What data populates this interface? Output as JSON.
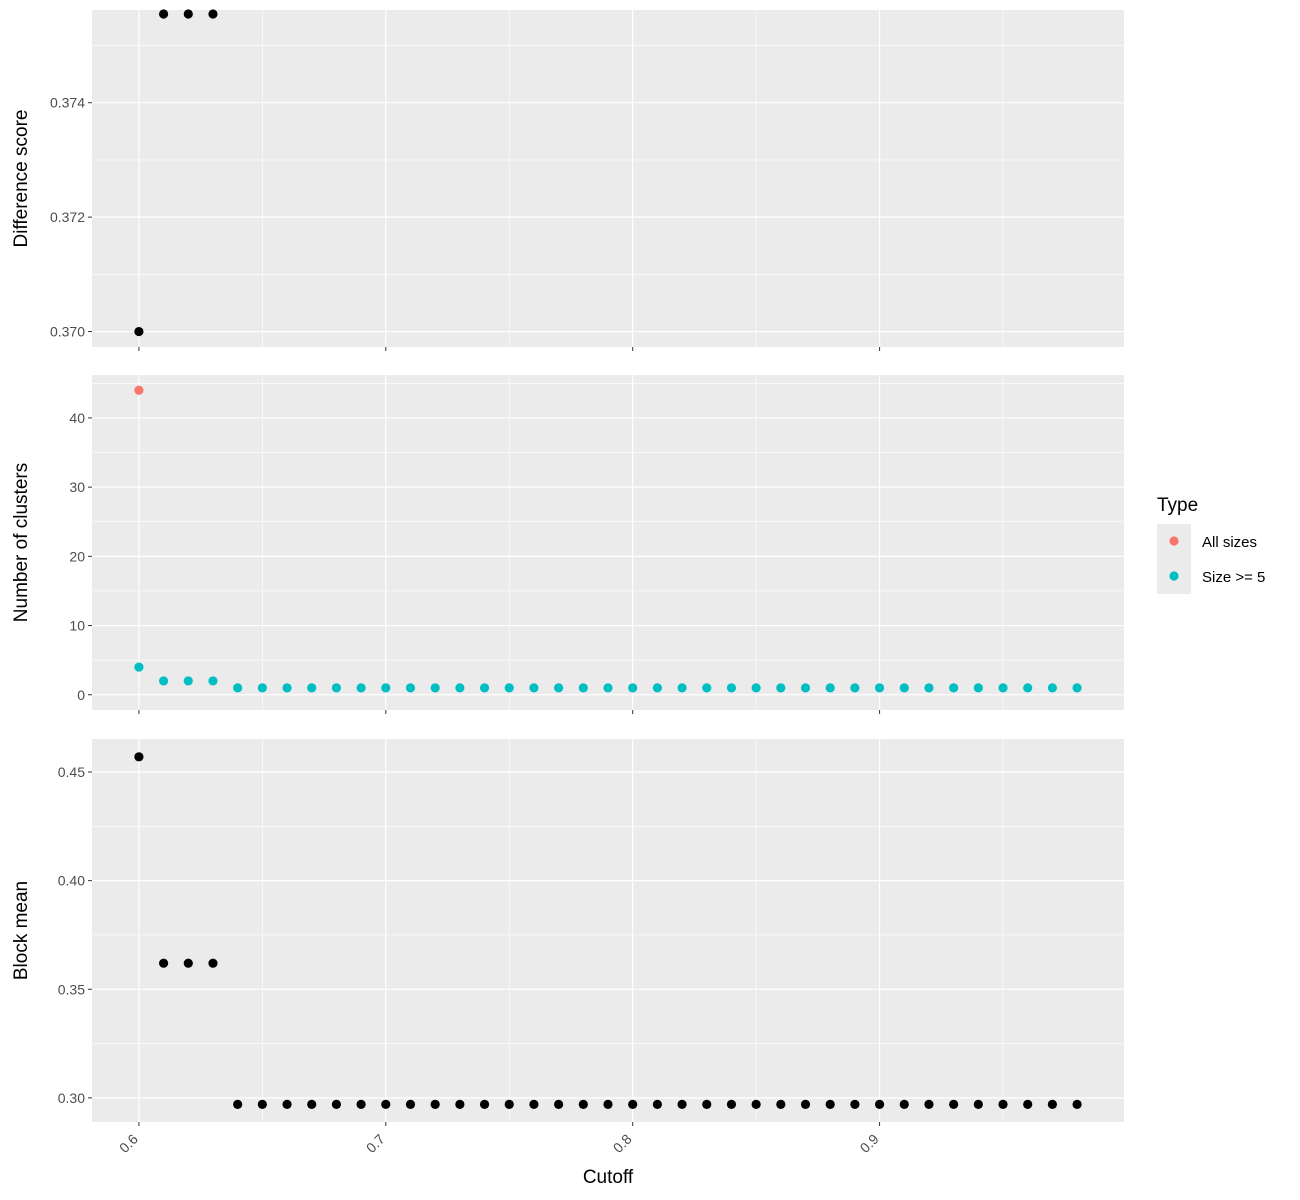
{
  "chart_data": {
    "type": "scatter",
    "xlabel": "Cutoff",
    "x_ticks": [
      0.6,
      0.7,
      0.8,
      0.9
    ],
    "x_tick_labels": [
      "0.6",
      "0.7",
      "0.8",
      "0.9"
    ],
    "xlim": [
      0.581,
      0.999
    ],
    "x": [
      0.6,
      0.61,
      0.62,
      0.63,
      0.64,
      0.65,
      0.66,
      0.67,
      0.68,
      0.69,
      0.7,
      0.71,
      0.72,
      0.73,
      0.74,
      0.75,
      0.76,
      0.77,
      0.78,
      0.79,
      0.8,
      0.81,
      0.82,
      0.83,
      0.84,
      0.85,
      0.86,
      0.87,
      0.88,
      0.89,
      0.9,
      0.91,
      0.92,
      0.93,
      0.94,
      0.95,
      0.96,
      0.97,
      0.98
    ],
    "panels": [
      {
        "ylabel": "Difference score",
        "ylim": [
          0.36973,
          0.37562
        ],
        "y_ticks": [
          0.37,
          0.372,
          0.374
        ],
        "y_tick_labels": [
          "0.370",
          "0.372",
          "0.374"
        ],
        "y_minor": [
          0.371,
          0.373,
          0.375
        ],
        "series": [
          {
            "color": "#000000",
            "x": [
              0.6,
              0.61,
              0.62,
              0.63
            ],
            "values": [
              0.37,
              0.37555,
              0.37555,
              0.37555
            ]
          }
        ]
      },
      {
        "ylabel": "Number of clusters",
        "ylim": [
          -2.2,
          46.2
        ],
        "y_ticks": [
          0,
          10,
          20,
          30,
          40
        ],
        "y_tick_labels": [
          "0",
          "10",
          "20",
          "30",
          "40"
        ],
        "y_minor": [
          5,
          15,
          25,
          35,
          45
        ],
        "series": [
          {
            "name": "All sizes",
            "color": "#F8766D",
            "x": [
              0.6
            ],
            "values": [
              44
            ]
          },
          {
            "name": "Size >= 5",
            "color": "#00BFC4",
            "x": [
              0.6,
              0.61,
              0.62,
              0.63,
              0.64,
              0.65,
              0.66,
              0.67,
              0.68,
              0.69,
              0.7,
              0.71,
              0.72,
              0.73,
              0.74,
              0.75,
              0.76,
              0.77,
              0.78,
              0.79,
              0.8,
              0.81,
              0.82,
              0.83,
              0.84,
              0.85,
              0.86,
              0.87,
              0.88,
              0.89,
              0.9,
              0.91,
              0.92,
              0.93,
              0.94,
              0.95,
              0.96,
              0.97,
              0.98
            ],
            "values": [
              4,
              2,
              2,
              2,
              1,
              1,
              1,
              1,
              1,
              1,
              1,
              1,
              1,
              1,
              1,
              1,
              1,
              1,
              1,
              1,
              1,
              1,
              1,
              1,
              1,
              1,
              1,
              1,
              1,
              1,
              1,
              1,
              1,
              1,
              1,
              1,
              1,
              1,
              1
            ]
          }
        ]
      },
      {
        "ylabel": "Block mean",
        "ylim": [
          0.2889,
          0.4652
        ],
        "y_ticks": [
          0.3,
          0.35,
          0.4,
          0.45
        ],
        "y_tick_labels": [
          "0.30",
          "0.35",
          "0.40",
          "0.45"
        ],
        "y_minor": [
          0.325,
          0.375,
          0.425
        ],
        "series": [
          {
            "color": "#000000",
            "x": [
              0.6,
              0.61,
              0.62,
              0.63,
              0.64,
              0.65,
              0.66,
              0.67,
              0.68,
              0.69,
              0.7,
              0.71,
              0.72,
              0.73,
              0.74,
              0.75,
              0.76,
              0.77,
              0.78,
              0.79,
              0.8,
              0.81,
              0.82,
              0.83,
              0.84,
              0.85,
              0.86,
              0.87,
              0.88,
              0.89,
              0.9,
              0.91,
              0.92,
              0.93,
              0.94,
              0.95,
              0.96,
              0.97,
              0.98
            ],
            "values": [
              0.457,
              0.362,
              0.362,
              0.362,
              0.297,
              0.297,
              0.297,
              0.297,
              0.297,
              0.297,
              0.297,
              0.297,
              0.297,
              0.297,
              0.297,
              0.297,
              0.297,
              0.297,
              0.297,
              0.297,
              0.297,
              0.297,
              0.297,
              0.297,
              0.297,
              0.297,
              0.297,
              0.297,
              0.297,
              0.297,
              0.297,
              0.297,
              0.297,
              0.297,
              0.297,
              0.297,
              0.297,
              0.297,
              0.297
            ]
          }
        ]
      }
    ],
    "legend": {
      "title": "Type",
      "placement": "right",
      "items": [
        {
          "label": "All sizes",
          "color": "#F8766D"
        },
        {
          "label": "Size >= 5",
          "color": "#00BFC4"
        }
      ]
    },
    "panel_background": "#EBEBEB",
    "grid_color": "#FFFFFF",
    "grid": true
  }
}
